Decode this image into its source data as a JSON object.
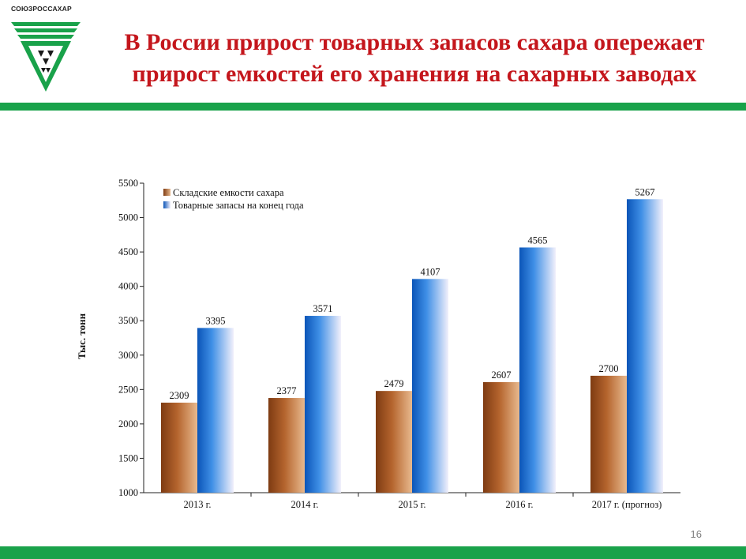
{
  "header": {
    "logo_text": "СОЮЗРОССАХАР",
    "title_line1": "В России прирост товарных запасов сахара опережает",
    "title_line2": "прирост емкостей его хранения на сахарных заводах"
  },
  "footer": {
    "page_number": "16"
  },
  "colors": {
    "title": "#c4161c",
    "brand_green": "#19a24a",
    "storage_bar": "#b5652e",
    "stock_bar": "#1a6fd0"
  },
  "chart_data": {
    "type": "bar",
    "title": "",
    "xlabel": "",
    "ylabel": "Тыс. тонн",
    "ylim": [
      1000,
      5500
    ],
    "yticks": [
      1000,
      1500,
      2000,
      2500,
      3000,
      3500,
      4000,
      4500,
      5000,
      5500
    ],
    "categories": [
      "2013 г.",
      "2014 г.",
      "2015 г.",
      "2016 г.",
      "2017 г. (прогноз)"
    ],
    "series": [
      {
        "name": "Складские емкости сахара",
        "values": [
          2309,
          2377,
          2479,
          2607,
          2700
        ]
      },
      {
        "name": "Товарные запасы на конец года",
        "values": [
          3395,
          3571,
          4107,
          4565,
          5267
        ]
      }
    ],
    "data_labels": true,
    "grid": false,
    "legend_position": "top-left"
  }
}
